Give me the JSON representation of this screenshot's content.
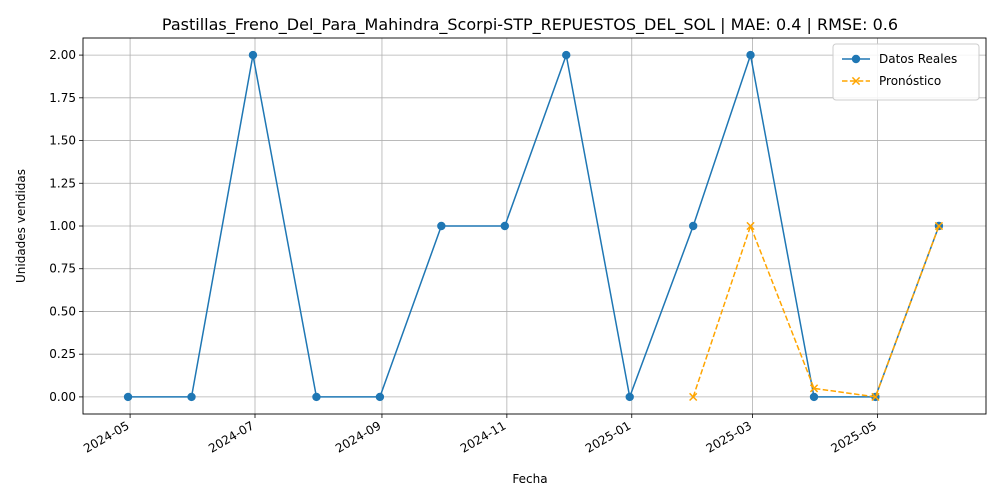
{
  "chart_data": {
    "type": "line",
    "title": "Pastillas_Freno_Del_Para_Mahindra_Scorpi-STP_REPUESTOS_DEL_SOL | MAE: 0.4 | RMSE: 0.6",
    "xlabel": "Fecha",
    "ylabel": "Unidades vendidas",
    "ylim": [
      -0.1,
      2.1
    ],
    "xlim": [
      "2024-04-08",
      "2025-06-23"
    ],
    "grid": true,
    "legend_position": "top-right",
    "x_ticks": [
      "2024-05",
      "2024-07",
      "2024-09",
      "2024-11",
      "2025-01",
      "2025-03",
      "2025-05"
    ],
    "y_ticks": [
      "0.00",
      "0.25",
      "0.50",
      "0.75",
      "1.00",
      "1.25",
      "1.50",
      "1.75",
      "2.00"
    ],
    "series": [
      {
        "name": "Datos Reales",
        "color": "#1f77b4",
        "linestyle": "solid",
        "marker": "circle",
        "x": [
          "2024-04-30",
          "2024-05-31",
          "2024-06-30",
          "2024-07-31",
          "2024-08-31",
          "2024-09-30",
          "2024-10-31",
          "2024-11-30",
          "2024-12-31",
          "2025-01-31",
          "2025-02-28",
          "2025-03-31",
          "2025-04-30",
          "2025-05-31"
        ],
        "values": [
          0,
          0,
          2,
          0,
          0,
          1,
          1,
          2,
          0,
          1,
          2,
          0,
          0,
          1
        ]
      },
      {
        "name": "Pronóstico",
        "color": "#ffa500",
        "linestyle": "dashed",
        "marker": "x",
        "x": [
          "2025-01-31",
          "2025-02-28",
          "2025-03-31",
          "2025-04-30",
          "2025-05-31"
        ],
        "values": [
          0,
          1,
          0.05,
          0,
          1
        ]
      }
    ]
  }
}
